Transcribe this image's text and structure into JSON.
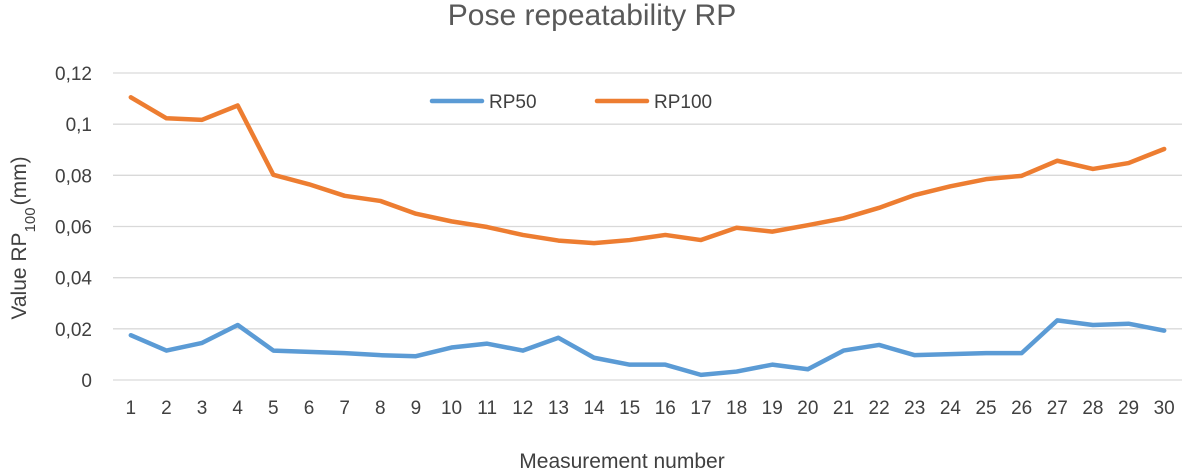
{
  "chart_data": {
    "type": "line",
    "title": "Pose repeatability RP",
    "xlabel": "Measurement number",
    "ylabel": {
      "prefix": "Value RP",
      "subscript": "100",
      "suffix": "(mm)"
    },
    "categories": [
      "1",
      "2",
      "3",
      "4",
      "5",
      "6",
      "7",
      "8",
      "9",
      "10",
      "11",
      "12",
      "13",
      "14",
      "15",
      "16",
      "17",
      "18",
      "19",
      "20",
      "21",
      "22",
      "23",
      "24",
      "25",
      "26",
      "27",
      "28",
      "29",
      "30"
    ],
    "ylim": [
      0,
      0.12
    ],
    "yticks": [
      0,
      0.02,
      0.04,
      0.06,
      0.08,
      0.1,
      0.12
    ],
    "ytick_labels": [
      "0",
      "0,02",
      "0,04",
      "0,06",
      "0,08",
      "0,1",
      "0,12"
    ],
    "grid": true,
    "legend_position": "top-center",
    "series": [
      {
        "name": "RP50",
        "color": "#5b9bd5",
        "values": [
          0.0175,
          0.0115,
          0.0145,
          0.0215,
          0.0115,
          0.011,
          0.0105,
          0.0097,
          0.0093,
          0.0127,
          0.0142,
          0.0115,
          0.0165,
          0.0087,
          0.006,
          0.006,
          0.002,
          0.0033,
          0.006,
          0.0042,
          0.0115,
          0.0137,
          0.0097,
          0.0101,
          0.0105,
          0.0105,
          0.0233,
          0.0215,
          0.022,
          0.0193
        ]
      },
      {
        "name": "RP100",
        "color": "#ed7d31",
        "values": [
          0.1105,
          0.1023,
          0.1017,
          0.1073,
          0.0802,
          0.0765,
          0.072,
          0.07,
          0.065,
          0.062,
          0.0598,
          0.0567,
          0.0545,
          0.0535,
          0.0547,
          0.0567,
          0.0547,
          0.0595,
          0.058,
          0.0605,
          0.0632,
          0.0673,
          0.0723,
          0.0757,
          0.0785,
          0.0798,
          0.0857,
          0.0825,
          0.0848,
          0.0903
        ]
      }
    ]
  }
}
